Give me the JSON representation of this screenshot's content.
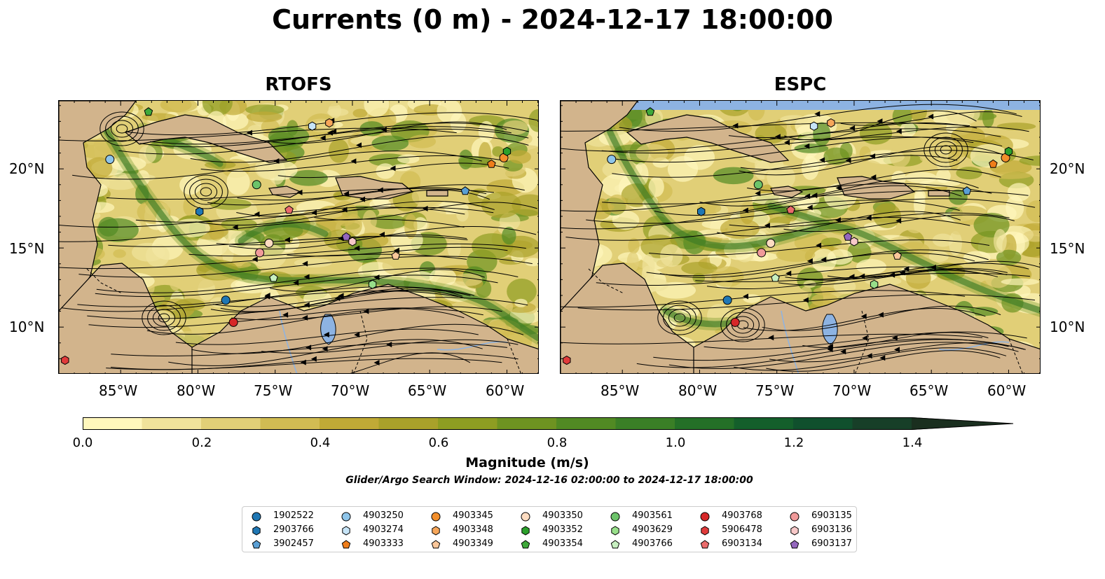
{
  "figure": {
    "title": "Currents (0 m) - 2024-12-17 18:00:00",
    "window_note": "Glider/Argo Search Window: 2024-12-16 02:00:00 to 2024-12-17 18:00:00"
  },
  "panels": [
    {
      "title": "RTOFS"
    },
    {
      "title": "ESPC"
    }
  ],
  "axes": {
    "lat_labels": [
      "20°N",
      "15°N",
      "10°N"
    ],
    "lon_labels": [
      "85°W",
      "80°W",
      "75°W",
      "70°W",
      "65°W",
      "60°W"
    ]
  },
  "colorbar": {
    "label": "Magnitude (m/s)",
    "ticks": [
      "0.0",
      "0.2",
      "0.4",
      "0.6",
      "0.8",
      "1.0",
      "1.2",
      "1.4"
    ],
    "range": [
      0.0,
      1.5
    ],
    "extend": "max",
    "colors": [
      "#fff7bc",
      "#f0e39b",
      "#e1cf77",
      "#d1bc53",
      "#c0aa36",
      "#a9a12a",
      "#8e9d22",
      "#6e9321",
      "#518a23",
      "#3a7f26",
      "#247027",
      "#145f2b",
      "#10502d",
      "#173f28",
      "#1a2f1f"
    ]
  },
  "land_color": "#d2b48c",
  "lake_color": "#8db3e2",
  "legend": {
    "items": [
      {
        "id": "1902522",
        "color": "#1f77b4",
        "marker": "circle"
      },
      {
        "id": "2903766",
        "color": "#1f77b4",
        "marker": "hexagon"
      },
      {
        "id": "3902457",
        "color": "#5a9fd4",
        "marker": "pentagon"
      },
      {
        "id": "4903250",
        "color": "#8ec5ea",
        "marker": "circle"
      },
      {
        "id": "4903274",
        "color": "#c6e4f7",
        "marker": "hexagon"
      },
      {
        "id": "4903333",
        "color": "#ef7d1a",
        "marker": "pentagon"
      },
      {
        "id": "4903345",
        "color": "#f28e2b",
        "marker": "circle"
      },
      {
        "id": "4903348",
        "color": "#f6a65a",
        "marker": "hexagon"
      },
      {
        "id": "4903349",
        "color": "#fbc79a",
        "marker": "pentagon"
      },
      {
        "id": "4903350",
        "color": "#fddcc1",
        "marker": "circle"
      },
      {
        "id": "4903352",
        "color": "#2ca02c",
        "marker": "hexagon"
      },
      {
        "id": "4903354",
        "color": "#3fa93a",
        "marker": "pentagon"
      },
      {
        "id": "4903561",
        "color": "#6cc36a",
        "marker": "circle"
      },
      {
        "id": "4903629",
        "color": "#98df8a",
        "marker": "hexagon"
      },
      {
        "id": "4903766",
        "color": "#c7efc0",
        "marker": "pentagon"
      },
      {
        "id": "4903768",
        "color": "#d62728",
        "marker": "circle"
      },
      {
        "id": "5906478",
        "color": "#e03b3b",
        "marker": "hexagon"
      },
      {
        "id": "6903134",
        "color": "#ea6b6b",
        "marker": "pentagon"
      },
      {
        "id": "6903135",
        "color": "#f09a9a",
        "marker": "circle"
      },
      {
        "id": "6903136",
        "color": "#f8c9c9",
        "marker": "hexagon"
      },
      {
        "id": "6903137",
        "color": "#9467bd",
        "marker": "pentagon"
      }
    ]
  }
}
